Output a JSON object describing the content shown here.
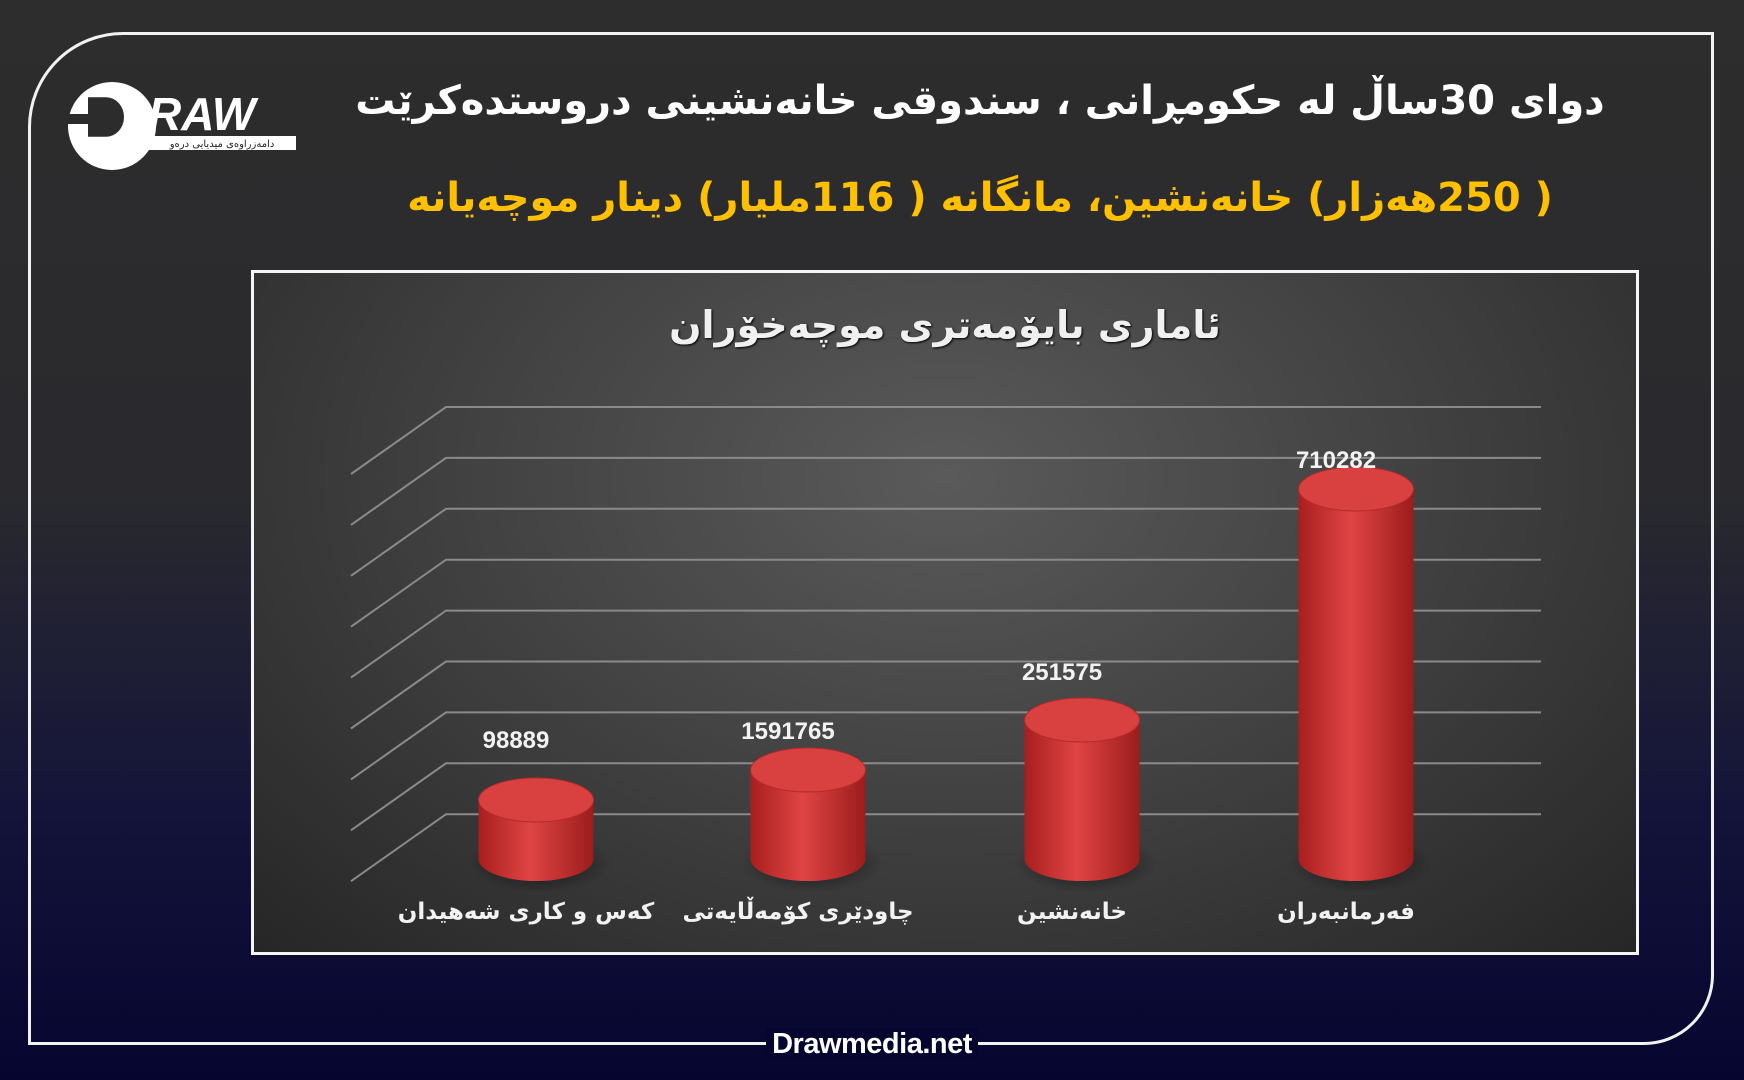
{
  "logo": {
    "text": "DRAW",
    "subtitle": "دامەزراوەی میدیایی درەو"
  },
  "header": {
    "title": "دوای 30ساڵ لە حکومڕانی ، سندوقی خانەنشینی دروستدەکرێت",
    "subtitle": "( 250هەزار) خانەنشین، مانگانە ( 116ملیار) دینار موچەیانە"
  },
  "colors": {
    "bar": "#d63a3a",
    "subtitle": "#ffc000",
    "frame": "#f2f2f2"
  },
  "chart_data": {
    "type": "bar",
    "style": "3d-cylinder",
    "title": "ئاماری بایۆمەتری موچەخۆران",
    "categories": [
      "کەس و کاری شەهیدان",
      "چاودێری کۆمەڵایەتی",
      "خانەنشین",
      "فەرمانبەران"
    ],
    "values": [
      98889,
      1591765,
      251575,
      710282
    ],
    "data_labels": [
      "98889",
      "1591765",
      "251575",
      "710282"
    ],
    "grid": true,
    "gridlines": 9,
    "legend": "none"
  },
  "footer": {
    "site": "Drawmedia.net"
  }
}
